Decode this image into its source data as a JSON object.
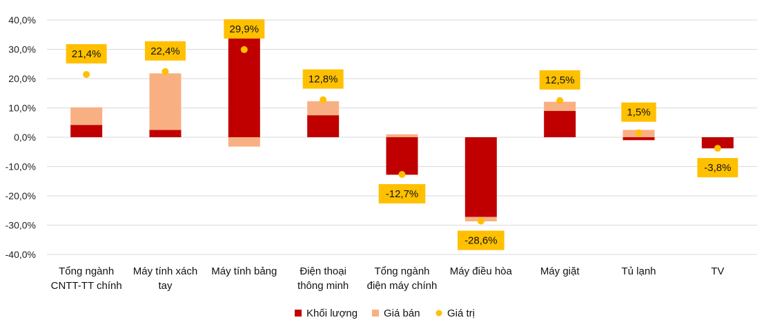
{
  "chart_data": {
    "type": "bar",
    "stacked": true,
    "categories": [
      [
        "Tổng ngành",
        "CNTT-TT chính"
      ],
      [
        "Máy tính xách",
        "tay"
      ],
      [
        "Máy tính bảng"
      ],
      [
        "Điện thoại",
        "thông minh"
      ],
      [
        "Tổng ngành",
        "điện máy chính"
      ],
      [
        "Máy điều hòa"
      ],
      [
        "Máy giặt"
      ],
      [
        "Tủ lạnh"
      ],
      [
        "TV"
      ]
    ],
    "series": [
      {
        "name": "Khối lượng",
        "kind": "bar",
        "color": "#C00000",
        "values": [
          4.2,
          2.5,
          34.0,
          7.5,
          -12.8,
          -27.2,
          9.0,
          -1.0,
          -3.8
        ]
      },
      {
        "name": "Giá bán",
        "kind": "bar",
        "color": "#F8B083",
        "values": [
          6.0,
          19.3,
          -3.2,
          4.8,
          1.0,
          -1.5,
          3.1,
          2.5,
          0.0
        ]
      },
      {
        "name": "Giá trị",
        "kind": "point",
        "color": "#FFC000",
        "values": [
          21.4,
          22.4,
          29.9,
          12.8,
          -12.7,
          -28.6,
          12.5,
          1.5,
          -3.8
        ],
        "labels": [
          "21,4%",
          "22,4%",
          "29,9%",
          "12,8%",
          "-12,7%",
          "-28,6%",
          "12,5%",
          "1,5%",
          "-3,8%"
        ]
      }
    ],
    "ylim": [
      -40,
      40
    ],
    "yticks": [
      40,
      30,
      20,
      10,
      0,
      -10,
      -20,
      -30,
      -40
    ],
    "ytick_labels": [
      "40,0%",
      "30,0%",
      "20,0%",
      "10,0%",
      "0,0%",
      "-10,0%",
      "-20,0%",
      "-30,0%",
      "-40,0%"
    ],
    "grid": true,
    "legend_position": "bottom",
    "label_box_color": "#FFC000",
    "gridline_color": "#D9D9D9"
  }
}
